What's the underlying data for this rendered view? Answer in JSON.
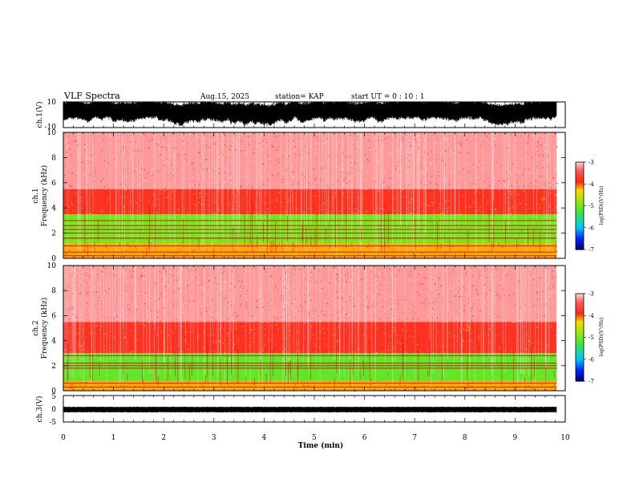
{
  "header": {
    "title": "VLF Spectra",
    "date": "Aug.15, 2025",
    "station": "station= KAP",
    "start": "start  UT =   0 : 10 : 1"
  },
  "colors": {
    "background": "#ffffff",
    "axis": "#000000",
    "spec_low": "#00c8ff",
    "spec_mid": "#7ee000",
    "spec_high": "#ff1a1a",
    "spec_top": "#ffd0d0"
  },
  "chart_data": [
    {
      "type": "line",
      "name": "ch1-waveform",
      "ylabel": "ch.1(V)",
      "ylim": [
        -10,
        10
      ],
      "ytick_labels": [
        "10",
        "-10"
      ],
      "x_range_min": [
        0,
        10
      ],
      "data_extent_min": [
        0,
        9.83
      ],
      "amplitude_band_v": [
        -6,
        8
      ]
    },
    {
      "type": "heatmap",
      "name": "ch1-spectrogram",
      "ylabel_line1": "ch.1",
      "ylabel_line2": "Frequency (kHz)",
      "ylim_khz": [
        0,
        10
      ],
      "ytick_labels": [
        "0",
        "2",
        "4",
        "6",
        "8",
        "10"
      ],
      "x_range_min": [
        0,
        10
      ],
      "data_extent_min": [
        0,
        9.83
      ],
      "colorbar": {
        "label": "log(PSD)(V²/Hz)",
        "range": [
          -7,
          -3
        ],
        "tick_labels": [
          "-3",
          "-4",
          "-5",
          "-6",
          "-7"
        ]
      },
      "bands": [
        {
          "from_khz": 0,
          "to_khz": 1.2,
          "level": -4.2
        },
        {
          "from_khz": 1.2,
          "to_khz": 3.5,
          "level": -5.0
        },
        {
          "from_khz": 3.5,
          "to_khz": 5.5,
          "level": -3.8
        },
        {
          "from_khz": 5.5,
          "to_khz": 10,
          "level": -3.2
        }
      ],
      "lines_khz": [
        0.2,
        0.5,
        1.0,
        1.6,
        2.0,
        2.3,
        2.6,
        3.0
      ]
    },
    {
      "type": "heatmap",
      "name": "ch2-spectrogram",
      "ylabel_line1": "ch.2",
      "ylabel_line2": "Frequency (kHz)",
      "ylim_khz": [
        0,
        10
      ],
      "ytick_labels": [
        "0",
        "2",
        "4",
        "6",
        "8",
        "10"
      ],
      "x_range_min": [
        0,
        10
      ],
      "data_extent_min": [
        0,
        9.83
      ],
      "colorbar": {
        "label": "log(PSD)(V²/Hz)",
        "range": [
          -7,
          -3
        ],
        "tick_labels": [
          "-3",
          "-4",
          "-5",
          "-6",
          "-7"
        ]
      },
      "bands": [
        {
          "from_khz": 0,
          "to_khz": 0.8,
          "level": -4.2
        },
        {
          "from_khz": 0.8,
          "to_khz": 3.0,
          "level": -5.1
        },
        {
          "from_khz": 3.0,
          "to_khz": 5.5,
          "level": -3.8
        },
        {
          "from_khz": 5.5,
          "to_khz": 10,
          "level": -3.2
        }
      ],
      "lines_khz": [
        0.3,
        0.6,
        1.8,
        2.0,
        2.2,
        2.8
      ]
    },
    {
      "type": "line",
      "name": "ch3-waveform",
      "ylabel": "ch.3(V)",
      "ylim": [
        -5,
        5
      ],
      "ytick_labels": [
        "5",
        "0",
        "-5"
      ],
      "x_range_min": [
        0,
        10
      ],
      "data_extent_min": [
        0,
        9.83
      ],
      "amplitude_band_v": [
        -1.2,
        0.6
      ]
    }
  ],
  "xaxis": {
    "label": "Time (min)",
    "tick_labels": [
      "0",
      "1",
      "2",
      "3",
      "4",
      "5",
      "6",
      "7",
      "8",
      "9",
      "10"
    ]
  }
}
